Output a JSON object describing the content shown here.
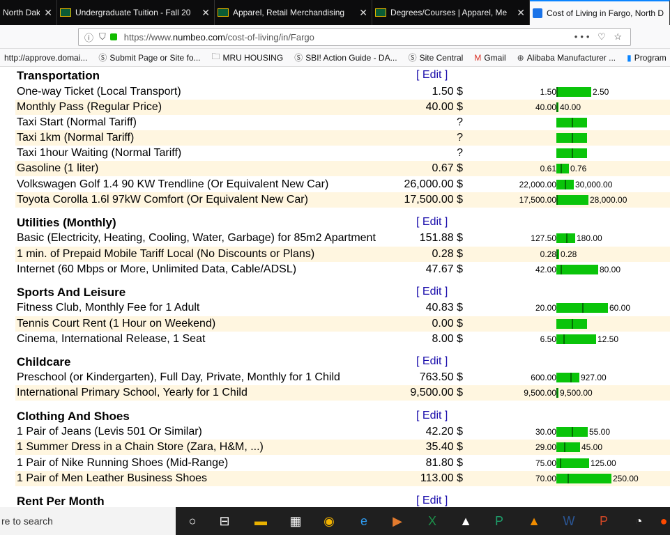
{
  "tabs": [
    {
      "title": "North Dak",
      "icon": "north-dakota-icon"
    },
    {
      "title": "Undergraduate Tuition - Fall 20",
      "icon": "ndsu-icon"
    },
    {
      "title": "Apparel, Retail Merchandising",
      "icon": "ndsu-icon"
    },
    {
      "title": "Degrees/Courses | Apparel, Me",
      "icon": "ndsu-icon"
    },
    {
      "title": "Cost of Living in Fargo, North D",
      "icon": "numbeo-icon"
    }
  ],
  "url": {
    "prefix": "https://www.",
    "host": "numbeo.com",
    "path": "/cost-of-living/in/Fargo"
  },
  "bookmarks": [
    {
      "label": "http://approve.domai...",
      "icon": ""
    },
    {
      "label": "Submit Page or Site fo...",
      "icon": "s-icon"
    },
    {
      "label": "MRU HOUSING",
      "icon": "folder-icon"
    },
    {
      "label": "SBI! Action Guide - DA...",
      "icon": "s-icon"
    },
    {
      "label": "Site Central",
      "icon": "s-icon"
    },
    {
      "label": "Gmail",
      "icon": "gmail-icon"
    },
    {
      "label": "Alibaba Manufacturer ...",
      "icon": "globe-icon"
    },
    {
      "label": "Program",
      "icon": "bookmark-icon"
    }
  ],
  "edit_label": "[ Edit ]",
  "sections": [
    {
      "title": "Transportation",
      "items": [
        {
          "label": "One-way Ticket (Local Transport)",
          "price": "1.50 $",
          "min": "1.50",
          "max": "2.50"
        },
        {
          "label": "Monthly Pass (Regular Price)",
          "price": "40.00 $",
          "min": "40.00",
          "max": "40.00"
        },
        {
          "label": "Taxi Start (Normal Tariff)",
          "price": "?",
          "min": "",
          "max": ""
        },
        {
          "label": "Taxi 1km (Normal Tariff)",
          "price": "?",
          "min": "",
          "max": ""
        },
        {
          "label": "Taxi 1hour Waiting (Normal Tariff)",
          "price": "?",
          "min": "",
          "max": ""
        },
        {
          "label": "Gasoline (1 liter)",
          "price": "0.67 $",
          "min": "0.61",
          "max": "0.76"
        },
        {
          "label": "Volkswagen Golf 1.4 90 KW Trendline (Or Equivalent New Car)",
          "price": "26,000.00 $",
          "min": "22,000.00",
          "max": "30,000.00"
        },
        {
          "label": "Toyota Corolla 1.6l 97kW Comfort (Or Equivalent New Car)",
          "price": "17,500.00 $",
          "min": "17,500.00",
          "max": "28,000.00"
        }
      ]
    },
    {
      "title": "Utilities (Monthly)",
      "items": [
        {
          "label": "Basic (Electricity, Heating, Cooling, Water, Garbage) for 85m2 Apartment",
          "price": "151.88 $",
          "min": "127.50",
          "max": "180.00"
        },
        {
          "label": "1 min. of Prepaid Mobile Tariff Local (No Discounts or Plans)",
          "price": "0.28 $",
          "min": "0.28",
          "max": "0.28"
        },
        {
          "label": "Internet (60 Mbps or More, Unlimited Data, Cable/ADSL)",
          "price": "47.67 $",
          "min": "42.00",
          "max": "80.00"
        }
      ]
    },
    {
      "title": "Sports And Leisure",
      "items": [
        {
          "label": "Fitness Club, Monthly Fee for 1 Adult",
          "price": "40.83 $",
          "min": "20.00",
          "max": "60.00"
        },
        {
          "label": "Tennis Court Rent (1 Hour on Weekend)",
          "price": "0.00 $",
          "min": "",
          "max": ""
        },
        {
          "label": "Cinema, International Release, 1 Seat",
          "price": "8.00 $",
          "min": "6.50",
          "max": "12.50"
        }
      ]
    },
    {
      "title": "Childcare",
      "items": [
        {
          "label": "Preschool (or Kindergarten), Full Day, Private, Monthly for 1 Child",
          "price": "763.50 $",
          "min": "600.00",
          "max": "927.00"
        },
        {
          "label": "International Primary School, Yearly for 1 Child",
          "price": "9,500.00 $",
          "min": "9,500.00",
          "max": "9,500.00"
        }
      ]
    },
    {
      "title": "Clothing And Shoes",
      "items": [
        {
          "label": "1 Pair of Jeans (Levis 501 Or Similar)",
          "price": "42.20 $",
          "min": "30.00",
          "max": "55.00"
        },
        {
          "label": "1 Summer Dress in a Chain Store (Zara, H&M, ...)",
          "price": "35.40 $",
          "min": "29.00",
          "max": "45.00"
        },
        {
          "label": "1 Pair of Nike Running Shoes (Mid-Range)",
          "price": "81.80 $",
          "min": "75.00",
          "max": "125.00"
        },
        {
          "label": "1 Pair of Men Leather Business Shoes",
          "price": "113.00 $",
          "min": "70.00",
          "max": "250.00"
        }
      ]
    },
    {
      "title": "Rent Per Month",
      "items": []
    }
  ],
  "taskbar": {
    "search_text": "re to search"
  },
  "colors": {
    "bar": "#0ac40a",
    "bar_mark": "#036e03",
    "alt_row": "#fff6e0",
    "link": "#1a0dab"
  }
}
